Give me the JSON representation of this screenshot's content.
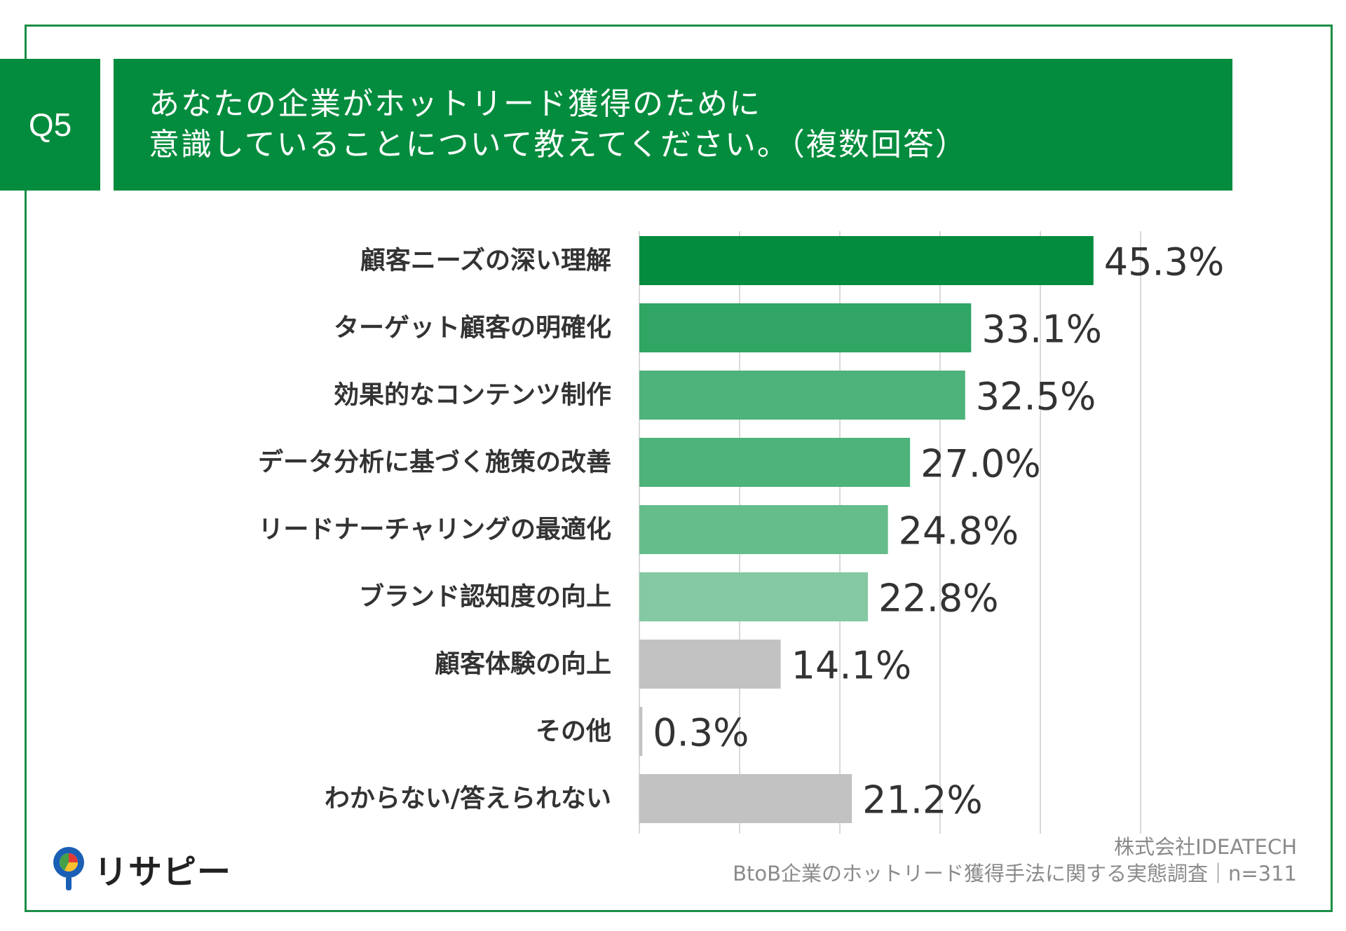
{
  "header": {
    "badge": "Q5",
    "question": "あなたの企業がホットリード獲得のために\n意識していることについて教えてください。（複数回答）"
  },
  "chart_data": {
    "type": "bar",
    "orientation": "horizontal",
    "categories": [
      "顧客ニーズの深い理解",
      "ターゲット顧客の明確化",
      "効果的なコンテンツ制作",
      "データ分析に基づく施策の改善",
      "リードナーチャリングの最適化",
      "ブランド認知度の向上",
      "顧客体験の向上",
      "その他",
      "わからない/答えられない"
    ],
    "values": [
      45.3,
      33.1,
      32.5,
      27.0,
      24.8,
      22.8,
      14.1,
      0.3,
      21.2
    ],
    "value_labels": [
      "45.3%",
      "33.1%",
      "32.5%",
      "27.0%",
      "24.8%",
      "22.8%",
      "14.1%",
      "0.3%",
      "21.2%"
    ],
    "bar_colors": [
      "#038c3d",
      "#31a564",
      "#4db37a",
      "#4db37a",
      "#66bd8c",
      "#84c9a1",
      "#c2c2c2",
      "#c2c2c2",
      "#c2c2c2"
    ],
    "xlim": [
      0,
      50
    ],
    "grid": true,
    "gridline_values": [
      0,
      10,
      20,
      30,
      40,
      50
    ]
  },
  "brand": {
    "logo_text": "リサピー"
  },
  "footer": {
    "company": "株式会社IDEATECH",
    "survey": "BtoB企業のホットリード獲得手法に関する実態調査｜n=311"
  },
  "colors": {
    "primary_green": "#038c3d",
    "frame_green": "#1b8f45"
  }
}
